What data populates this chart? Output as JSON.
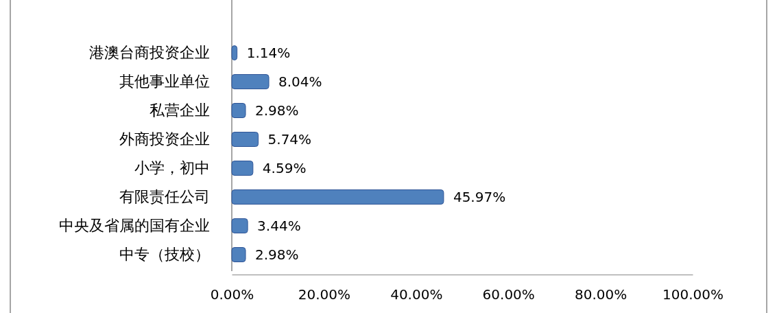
{
  "chart_data": {
    "type": "bar",
    "orientation": "horizontal",
    "categories": [
      "港澳台商投资企业",
      "其他事业单位",
      "私营企业",
      "外商投资企业",
      "小学，初中",
      "有限责任公司",
      "中央及省属的国有企业",
      "中专（技校）"
    ],
    "values": [
      1.14,
      8.04,
      2.98,
      5.74,
      4.59,
      45.97,
      3.44,
      2.98
    ],
    "value_labels": [
      "1.14%",
      "8.04%",
      "2.98%",
      "5.74%",
      "4.59%",
      "45.97%",
      "3.44%",
      "2.98%"
    ],
    "color": "#4f81bd",
    "xlim": [
      0,
      100
    ],
    "xticks": [
      {
        "value": 0,
        "label": "0.00%"
      },
      {
        "value": 20,
        "label": "20.00%"
      },
      {
        "value": 40,
        "label": "40.00%"
      },
      {
        "value": 60,
        "label": "60.00%"
      },
      {
        "value": 80,
        "label": "80.00%"
      },
      {
        "value": 100,
        "label": "100.00%"
      }
    ],
    "grid": false
  }
}
